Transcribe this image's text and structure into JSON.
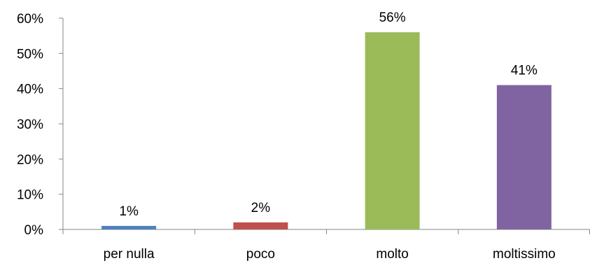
{
  "chart_data": {
    "type": "bar",
    "title": "",
    "xlabel": "",
    "ylabel": "",
    "categories": [
      "per nulla",
      "poco",
      "molto",
      "moltissimo"
    ],
    "values": [
      1,
      2,
      56,
      41
    ],
    "data_labels": [
      "1%",
      "2%",
      "56%",
      "41%"
    ],
    "colors": [
      "#4F81BD",
      "#C0504D",
      "#9BBB59",
      "#8064A2"
    ],
    "ylim": [
      0,
      60
    ],
    "yticks": [
      0,
      10,
      20,
      30,
      40,
      50,
      60
    ],
    "ytick_labels": [
      "0%",
      "10%",
      "20%",
      "30%",
      "40%",
      "50%",
      "60%"
    ],
    "grid": false,
    "legend": "none"
  }
}
